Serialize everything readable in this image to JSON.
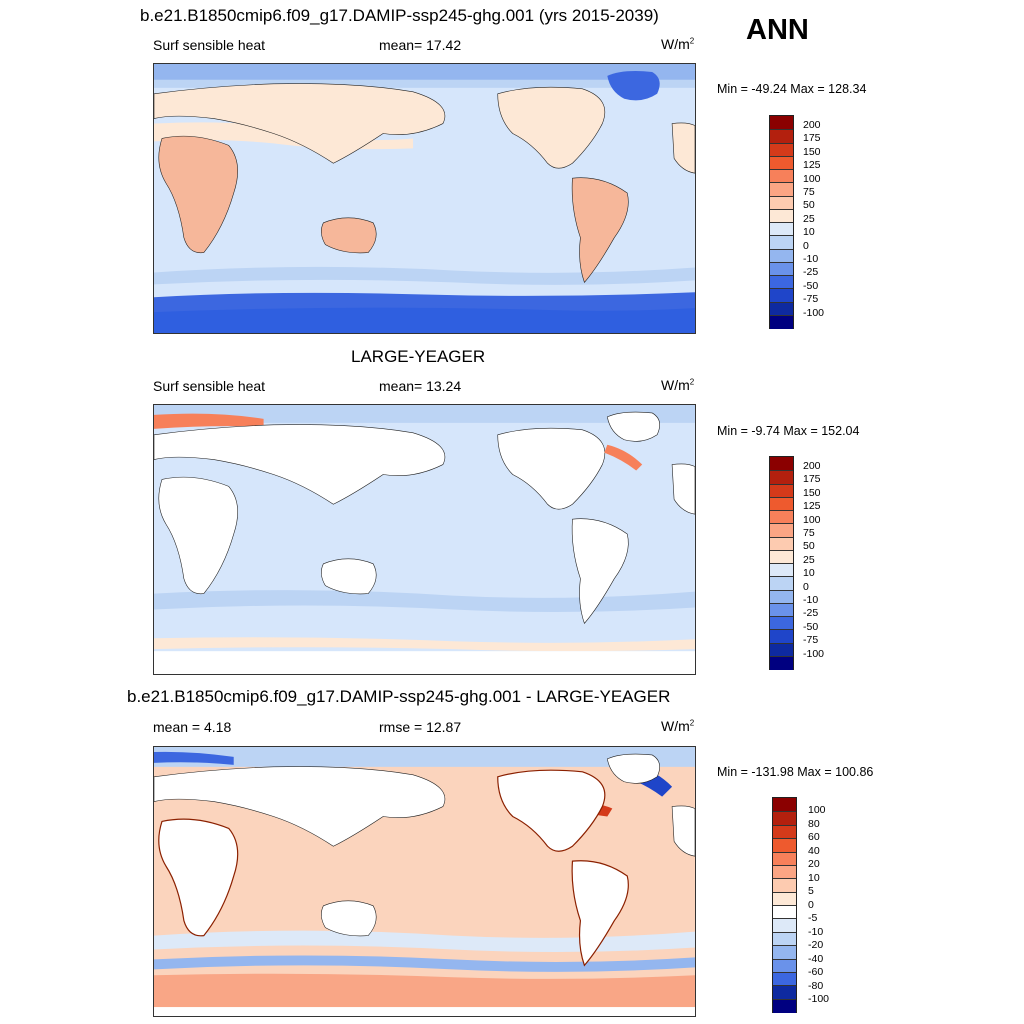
{
  "season": "ANN",
  "panels": [
    {
      "title": "b.e21.B1850cmip6.f09_g17.DAMIP-ssp245-ghg.001 (yrs 2015-2039)",
      "left_label": "Surf sensible heat",
      "center_label": "mean=  17.42",
      "units": "W/m",
      "units_sup": "2",
      "minmax": "Min = -49.24 Max = 128.34",
      "colorbar_labels": [
        "200",
        "175",
        "150",
        "125",
        "100",
        "75",
        "50",
        "25",
        "10",
        "0",
        "-10",
        "-25",
        "-50",
        "-75",
        "-100"
      ]
    },
    {
      "title": "LARGE-YEAGER",
      "left_label": "Surf sensible heat",
      "center_label": "mean=  13.24",
      "units": "W/m",
      "units_sup": "2",
      "minmax": "Min =  -9.74 Max = 152.04",
      "colorbar_labels": [
        "200",
        "175",
        "150",
        "125",
        "100",
        "75",
        "50",
        "25",
        "10",
        "0",
        "-10",
        "-25",
        "-50",
        "-75",
        "-100"
      ]
    },
    {
      "title": "b.e21.B1850cmip6.f09_g17.DAMIP-ssp245-ghg.001 - LARGE-YEAGER",
      "left_label": "mean =   4.18",
      "center_label": "rmse =  12.87",
      "units": "W/m",
      "units_sup": "2",
      "minmax": "Min = -131.98 Max = 100.86",
      "colorbar_labels": [
        "100",
        "80",
        "60",
        "40",
        "20",
        "10",
        "5",
        "0",
        "-5",
        "-10",
        "-20",
        "-40",
        "-60",
        "-80",
        "-100"
      ]
    }
  ],
  "colors": {
    "abs_scale": [
      "#8b0000",
      "#b3200e",
      "#d43a1a",
      "#ee5a2e",
      "#f7805a",
      "#fba584",
      "#fdcbb0",
      "#fde8d6",
      "#dde9f8",
      "#bcd4f4",
      "#94b6ef",
      "#6a92ea",
      "#3c67e0",
      "#1f45c9",
      "#0e2aa0",
      "#000080"
    ],
    "diff_scale": [
      "#8b0000",
      "#b3200e",
      "#d43a1a",
      "#ee5a2e",
      "#f7805a",
      "#fba584",
      "#fdcbb0",
      "#fde8d6",
      "#ffffff",
      "#dde9f8",
      "#bcd4f4",
      "#94b6ef",
      "#6a92ea",
      "#3c67e0",
      "#0e2aa0",
      "#000080"
    ],
    "ocean_pos": "#fbd4bd",
    "ocean_neg": "#d6e6fb",
    "land_warm": "#f6b79a",
    "land_cool": "#e9c3ac",
    "ice_blue": "#2f5fe0"
  }
}
